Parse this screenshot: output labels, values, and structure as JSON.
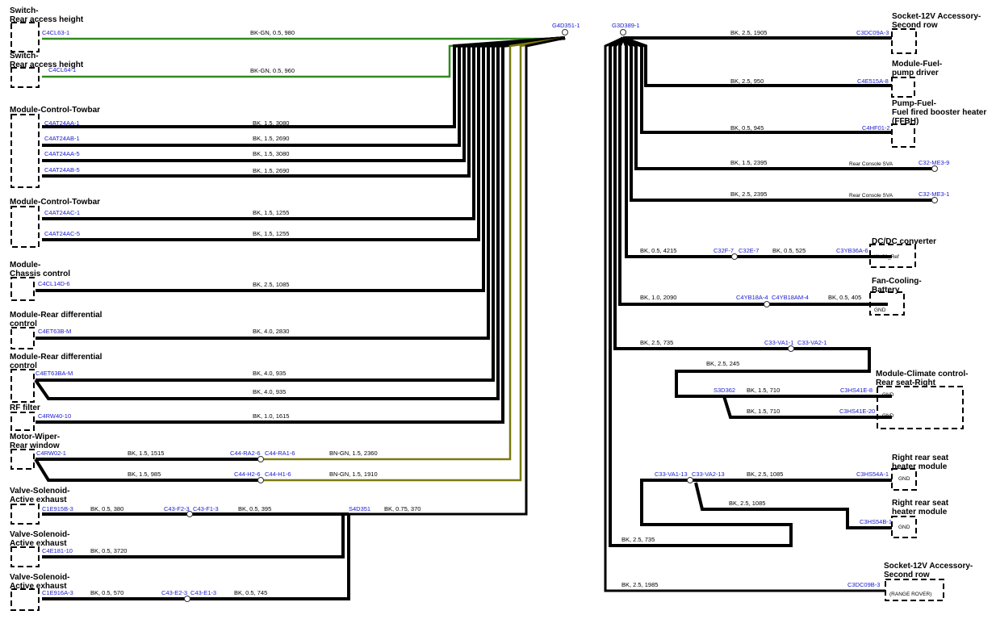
{
  "components": [
    {
      "lines": [
        "Switch-",
        "Rear access height"
      ]
    },
    {
      "lines": [
        "Switch-",
        "Rear access height"
      ]
    },
    {
      "lines": [
        "Module-Control-Towbar"
      ]
    },
    {
      "lines": [
        "Module-Control-Towbar"
      ]
    },
    {
      "lines": [
        "Module-",
        "Chassis control"
      ]
    },
    {
      "lines": [
        "Module-Rear differential",
        "control"
      ]
    },
    {
      "lines": [
        "Module-Rear differential",
        "control"
      ]
    },
    {
      "lines": [
        "RF filter"
      ]
    },
    {
      "lines": [
        "Motor-Wiper-",
        "Rear window"
      ]
    },
    {
      "lines": [
        "Valve-Solenoid-",
        "Active exhaust"
      ]
    },
    {
      "lines": [
        "Valve-Solenoid-",
        "Active exhaust"
      ]
    },
    {
      "lines": [
        "Valve-Solenoid-",
        "Active exhaust"
      ]
    },
    {
      "lines": [
        "Socket-12V Accessory-",
        "Second row"
      ]
    },
    {
      "lines": [
        "Module-Fuel-",
        "pump driver"
      ]
    },
    {
      "lines": [
        "Pump-Fuel-",
        "Fuel fired booster heater",
        "(FFBH)"
      ]
    },
    {
      "lines": [
        "DC/DC converter"
      ]
    },
    {
      "lines": [
        "Fan-Cooling-",
        "Battery"
      ]
    },
    {
      "lines": [
        "Module-Climate control-",
        "Rear seat-Right"
      ]
    },
    {
      "lines": [
        "Right rear seat",
        "heater module"
      ]
    },
    {
      "lines": [
        "Right rear seat",
        "heater module"
      ]
    },
    {
      "lines": [
        "Socket-12V Accessory-",
        "Second row"
      ]
    }
  ],
  "connectors": [
    "C4CL63-1",
    "C4CL64-1",
    "C4AT24AA-1",
    "C4AT24AB-1",
    "C4AT24AA-5",
    "C4AT24AB-5",
    "C4AT24AC-1",
    "C4AT24AC-5",
    "C4CL14D-6",
    "C4ET63B-M",
    "C4ET63BA-M",
    "C4RW40-10",
    "C4RW02-1",
    "C44-RA2-6",
    "C44-RA1-6",
    "C44-H2-6",
    "C44-H1-6",
    "C1E915B-3",
    "C43-F2-3",
    "C43-F1-3",
    "S4D351",
    "C4E181-10",
    "C1E916A-3",
    "C43-E2-3",
    "C43-E1-3",
    "G4D351-1",
    "G3D389-1",
    "C3DC09A-3",
    "C4E515A-8",
    "C4HF01-2",
    "C32-ME3-9",
    "C32-ME3-1",
    "C32F-7",
    "C32E-7",
    "C3YB36A-6",
    "C4YB18A-4",
    "C4YB18AM-4",
    "C33-VA1-1",
    "C33-VA2-1",
    "S3D362",
    "C3HS41E-8",
    "C3HS41E-20",
    "C33-VA1-13",
    "C33-VA2-13",
    "C3HS54A-1",
    "C3HS54B-1",
    "C3DC09B-3"
  ],
  "wires": [
    "BK-GN, 0.5, 980",
    "BK-GN, 0.5, 960",
    "BK, 1.5, 3080",
    "BK, 1.5, 2690",
    "BK, 1.5, 3080",
    "BK, 1.5, 2690",
    "BK, 1.5, 1255",
    "BK, 1.5, 1255",
    "BK, 2.5, 1085",
    "BK, 4.0, 2830",
    "BK, 4.0, 935",
    "BK, 4.0, 935",
    "BK, 1.0, 1615",
    "BK, 1.5, 1515",
    "BN-GN, 1.5, 2360",
    "BK, 1.5, 985",
    "BN-GN, 1.5, 1910",
    "BK, 0.5, 380",
    "BK, 0.5, 395",
    "BK, 0.75, 370",
    "BK, 0.5, 3720",
    "BK, 0.5, 570",
    "BK, 0.5, 745",
    "BK, 2.5, 1905",
    "BK, 2.5, 950",
    "BK, 0.5, 945",
    "BK, 1.5, 2395",
    "BK, 2.5, 2395",
    "BK, 0.5, 4215",
    "BK, 0.5, 525",
    "BK, 1.0, 2090",
    "BK, 0.5, 405",
    "BK, 2.5, 735",
    "BK, 2.5, 245",
    "BK, 1.5, 710",
    "BK, 1.5, 710",
    "BK, 2.5, 1085",
    "BK, 2.5, 1085",
    "BK, 2.5, 735",
    "BK, 2.5, 1985"
  ],
  "notes": [
    "Rear Console SVA",
    "Rear Console SVA",
    "KL.31_Ref",
    "GND",
    "GND",
    "GND",
    "GND",
    "GND",
    "(RANGE ROVER)"
  ]
}
